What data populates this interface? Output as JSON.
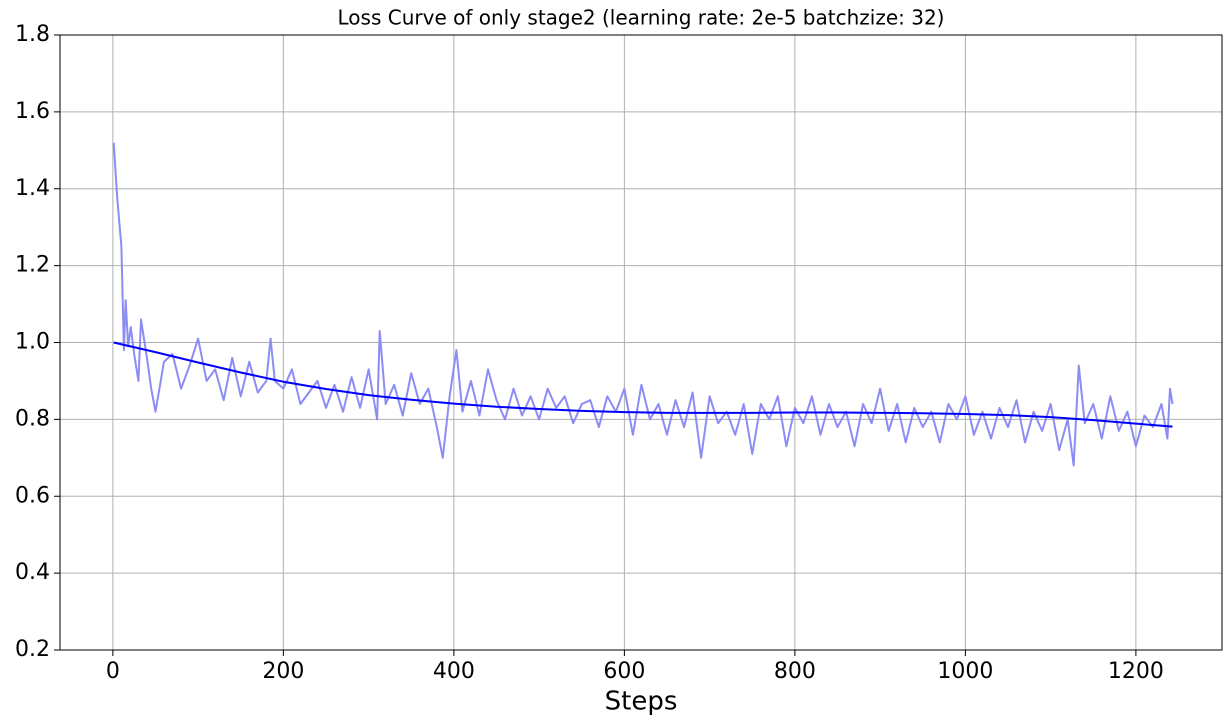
{
  "chart_data": {
    "type": "line",
    "title": "Loss Curve of only stage2 (learning rate: 2e-5 batchzize: 32)",
    "x_label": "Steps",
    "xlim": [
      -62,
      1301
    ],
    "xticks": [
      0,
      200,
      400,
      600,
      800,
      1000,
      1200
    ],
    "ylim": [
      0.2,
      1.8
    ],
    "yticks": [
      0.2,
      0.4,
      0.6,
      0.8,
      {
        "value": 1,
        "label": "1.0"
      },
      1.2,
      1.4,
      1.6,
      1.8
    ],
    "grid": true,
    "series": [
      {
        "color": "#8c8cf5",
        "x": [
          1,
          5,
          10,
          13,
          15,
          18,
          21,
          25,
          30,
          33,
          40,
          45,
          50,
          60,
          70,
          80,
          90,
          100,
          110,
          120,
          130,
          140,
          150,
          160,
          170,
          180,
          185,
          190,
          200,
          210,
          220,
          230,
          240,
          250,
          260,
          270,
          280,
          290,
          300,
          310,
          313,
          320,
          330,
          340,
          350,
          360,
          370,
          380,
          387,
          395,
          403,
          410,
          420,
          430,
          440,
          450,
          460,
          470,
          480,
          490,
          500,
          510,
          520,
          530,
          540,
          550,
          560,
          570,
          580,
          590,
          600,
          610,
          620,
          630,
          640,
          650,
          660,
          670,
          680,
          690,
          700,
          710,
          720,
          730,
          740,
          750,
          760,
          770,
          780,
          790,
          800,
          810,
          820,
          830,
          840,
          850,
          860,
          870,
          880,
          890,
          900,
          910,
          920,
          930,
          940,
          950,
          960,
          970,
          980,
          990,
          1000,
          1010,
          1020,
          1030,
          1040,
          1050,
          1060,
          1070,
          1080,
          1090,
          1100,
          1110,
          1120,
          1127,
          1133,
          1140,
          1150,
          1160,
          1170,
          1180,
          1190,
          1200,
          1210,
          1220,
          1230,
          1237,
          1240,
          1243
        ],
        "values": [
          1.52,
          1.38,
          1.25,
          0.98,
          1.11,
          0.99,
          1.04,
          0.97,
          0.9,
          1.06,
          0.96,
          0.88,
          0.82,
          0.95,
          0.97,
          0.88,
          0.94,
          1.01,
          0.9,
          0.93,
          0.85,
          0.96,
          0.86,
          0.95,
          0.87,
          0.9,
          1.01,
          0.9,
          0.88,
          0.93,
          0.84,
          0.87,
          0.9,
          0.83,
          0.89,
          0.82,
          0.91,
          0.83,
          0.93,
          0.8,
          1.03,
          0.84,
          0.89,
          0.81,
          0.92,
          0.84,
          0.88,
          0.78,
          0.7,
          0.86,
          0.98,
          0.82,
          0.9,
          0.81,
          0.93,
          0.85,
          0.8,
          0.88,
          0.81,
          0.86,
          0.8,
          0.88,
          0.83,
          0.86,
          0.79,
          0.84,
          0.85,
          0.78,
          0.86,
          0.82,
          0.88,
          0.76,
          0.89,
          0.8,
          0.84,
          0.76,
          0.85,
          0.78,
          0.87,
          0.7,
          0.86,
          0.79,
          0.82,
          0.76,
          0.84,
          0.71,
          0.84,
          0.8,
          0.86,
          0.73,
          0.83,
          0.79,
          0.86,
          0.76,
          0.84,
          0.78,
          0.82,
          0.73,
          0.84,
          0.79,
          0.88,
          0.77,
          0.84,
          0.74,
          0.83,
          0.78,
          0.82,
          0.74,
          0.84,
          0.8,
          0.86,
          0.76,
          0.82,
          0.75,
          0.83,
          0.78,
          0.85,
          0.74,
          0.82,
          0.77,
          0.84,
          0.72,
          0.8,
          0.68,
          0.94,
          0.79,
          0.84,
          0.75,
          0.86,
          0.77,
          0.82,
          0.73,
          0.81,
          0.78,
          0.84,
          0.75,
          0.88,
          0.84
        ]
      },
      {
        "color": "#0000ff",
        "x": [
          1,
          50,
          100,
          150,
          200,
          250,
          300,
          350,
          400,
          450,
          500,
          550,
          600,
          650,
          700,
          750,
          800,
          850,
          900,
          950,
          1000,
          1050,
          1100,
          1150,
          1200,
          1243
        ],
        "values": [
          1.0,
          0.975,
          0.948,
          0.922,
          0.898,
          0.879,
          0.863,
          0.851,
          0.841,
          0.833,
          0.827,
          0.822,
          0.819,
          0.817,
          0.817,
          0.817,
          0.818,
          0.818,
          0.817,
          0.816,
          0.814,
          0.811,
          0.806,
          0.798,
          0.789,
          0.781
        ]
      }
    ]
  }
}
